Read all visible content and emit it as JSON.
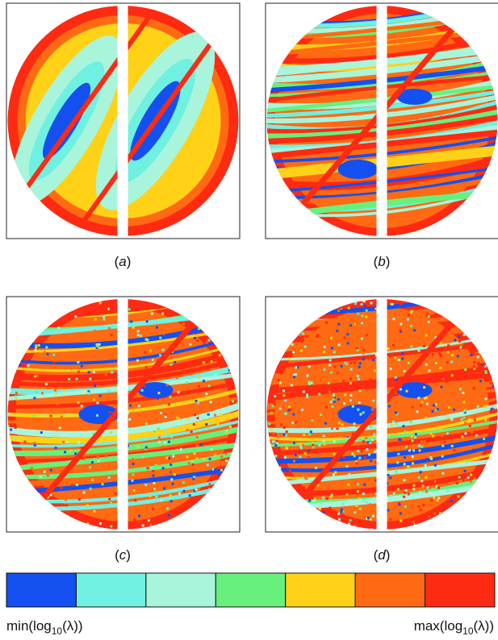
{
  "panels": [
    {
      "caption": [
        "(",
        "a",
        ")"
      ]
    },
    {
      "caption": [
        "(",
        "b",
        ")"
      ]
    },
    {
      "caption": [
        "(",
        "c",
        ")"
      ]
    },
    {
      "caption": [
        "(",
        "d",
        ")"
      ]
    }
  ],
  "colorbar": {
    "colors": [
      "#1450f0",
      "#70f0e0",
      "#a8f5dc",
      "#68f07c",
      "#ffd218",
      "#ff6a12",
      "#ff2a12"
    ],
    "min_label": [
      "min(log",
      "10",
      "(λ))"
    ],
    "max_label": [
      "max(log",
      "10",
      "(λ))"
    ]
  }
}
